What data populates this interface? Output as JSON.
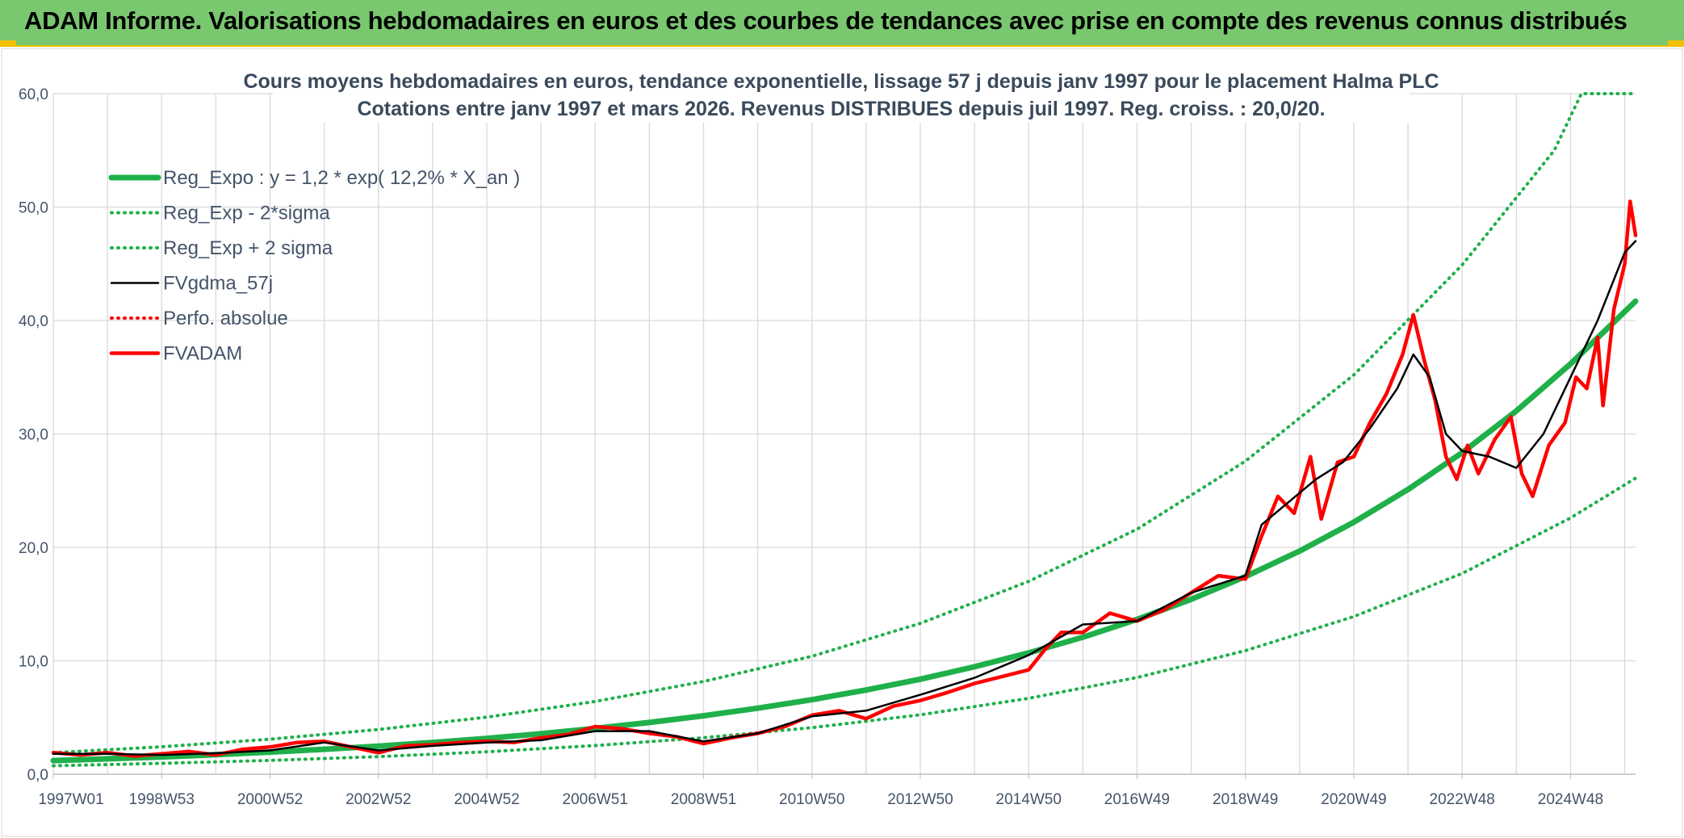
{
  "banner": {
    "title": "ADAM Informe. Valorisations hebdomadaires en euros et des courbes de tendances avec prise en compte des revenus connus distribués"
  },
  "colors": {
    "banner_bg": "#79c76f",
    "banner_accent": "#f0c000",
    "regression": "#1fb04a",
    "smoothed": "#000000",
    "price": "#ff0000",
    "grid": "#d9d9d9",
    "text": "#44546a"
  },
  "chart_data": {
    "type": "line",
    "title": "Cours moyens hebdomadaires en euros, tendance exponentielle, lissage 57 j depuis janv 1997 pour le placement Halma PLC",
    "subtitle": "Cotations entre janv 1997 et mars 2026. Revenus DISTRIBUES depuis juil 1997. Reg. croiss. : 20,0/20.",
    "xlabel": "",
    "ylabel": "",
    "ylim": [
      0,
      60
    ],
    "xlim": [
      1997.0,
      2026.2
    ],
    "grid": true,
    "legend_position": "top-left",
    "y_ticks": [
      "0,0",
      "10,0",
      "20,0",
      "30,0",
      "40,0",
      "50,0",
      "60,0"
    ],
    "x_ticks": [
      {
        "label": "1997W01",
        "x": 1997.0
      },
      {
        "label": "1998W53",
        "x": 1999.0
      },
      {
        "label": "2000W52",
        "x": 2001.0
      },
      {
        "label": "2002W52",
        "x": 2003.0
      },
      {
        "label": "2004W52",
        "x": 2005.0
      },
      {
        "label": "2006W51",
        "x": 2007.0
      },
      {
        "label": "2008W51",
        "x": 2009.0
      },
      {
        "label": "2010W50",
        "x": 2011.0
      },
      {
        "label": "2012W50",
        "x": 2013.0
      },
      {
        "label": "2014W50",
        "x": 2015.0
      },
      {
        "label": "2016W49",
        "x": 2017.0
      },
      {
        "label": "2018W49",
        "x": 2019.0
      },
      {
        "label": "2020W49",
        "x": 2021.0
      },
      {
        "label": "2022W48",
        "x": 2023.0
      },
      {
        "label": "2024W48",
        "x": 2025.0
      }
    ],
    "series": [
      {
        "name": "Reg_Expo : y = 1,2 * exp( 12,2% *  X_an )",
        "style": "solid-thick",
        "color": "#1fb04a",
        "points": [
          [
            1997.0,
            1.2
          ],
          [
            1998.0,
            1.36
          ],
          [
            1999.0,
            1.52
          ],
          [
            2000.0,
            1.72
          ],
          [
            2001.0,
            1.95
          ],
          [
            2002.0,
            2.2
          ],
          [
            2003.0,
            2.48
          ],
          [
            2004.0,
            2.8
          ],
          [
            2005.0,
            3.16
          ],
          [
            2006.0,
            3.57
          ],
          [
            2007.0,
            4.04
          ],
          [
            2008.0,
            4.56
          ],
          [
            2009.0,
            5.15
          ],
          [
            2010.0,
            5.82
          ],
          [
            2011.0,
            6.57
          ],
          [
            2012.0,
            7.42
          ],
          [
            2013.0,
            8.38
          ],
          [
            2014.0,
            9.47
          ],
          [
            2015.0,
            10.7
          ],
          [
            2016.0,
            12.08
          ],
          [
            2017.0,
            13.65
          ],
          [
            2018.0,
            15.42
          ],
          [
            2019.0,
            17.42
          ],
          [
            2020.0,
            19.67
          ],
          [
            2021.0,
            22.22
          ],
          [
            2022.0,
            25.1
          ],
          [
            2023.0,
            28.35
          ],
          [
            2024.0,
            32.03
          ],
          [
            2025.0,
            36.18
          ],
          [
            2026.2,
            41.7
          ]
        ]
      },
      {
        "name": "Reg_Exp - 2*sigma",
        "style": "dotted",
        "color": "#1fb04a",
        "points": [
          [
            1997.0,
            0.75
          ],
          [
            1999.0,
            0.96
          ],
          [
            2001.0,
            1.22
          ],
          [
            2003.0,
            1.55
          ],
          [
            2005.0,
            1.98
          ],
          [
            2007.0,
            2.53
          ],
          [
            2009.0,
            3.22
          ],
          [
            2011.0,
            4.11
          ],
          [
            2013.0,
            5.24
          ],
          [
            2015.0,
            6.69
          ],
          [
            2017.0,
            8.53
          ],
          [
            2019.0,
            10.9
          ],
          [
            2021.0,
            13.9
          ],
          [
            2023.0,
            17.7
          ],
          [
            2025.0,
            22.6
          ],
          [
            2026.2,
            26.1
          ]
        ]
      },
      {
        "name": "Reg_Exp + 2 sigma",
        "style": "dotted",
        "color": "#1fb04a",
        "points": [
          [
            1997.0,
            1.9
          ],
          [
            1999.0,
            2.42
          ],
          [
            2001.0,
            3.09
          ],
          [
            2003.0,
            3.94
          ],
          [
            2005.0,
            5.03
          ],
          [
            2007.0,
            6.41
          ],
          [
            2009.0,
            8.18
          ],
          [
            2011.0,
            10.4
          ],
          [
            2013.0,
            13.3
          ],
          [
            2015.0,
            17.0
          ],
          [
            2017.0,
            21.6
          ],
          [
            2019.0,
            27.6
          ],
          [
            2021.0,
            35.2
          ],
          [
            2023.0,
            44.9
          ],
          [
            2024.7,
            55.0
          ],
          [
            2025.2,
            60.0
          ],
          [
            2026.2,
            60.0
          ]
        ]
      },
      {
        "name": "FVgdma_57j",
        "style": "solid",
        "color": "#000000",
        "points": [
          [
            1997.0,
            1.8
          ],
          [
            1998.0,
            1.8
          ],
          [
            1999.0,
            1.7
          ],
          [
            2000.0,
            1.85
          ],
          [
            2001.0,
            2.1
          ],
          [
            2002.0,
            2.8
          ],
          [
            2003.0,
            2.1
          ],
          [
            2004.0,
            2.5
          ],
          [
            2005.0,
            2.8
          ],
          [
            2006.0,
            3.0
          ],
          [
            2007.0,
            3.8
          ],
          [
            2008.0,
            3.8
          ],
          [
            2009.0,
            2.9
          ],
          [
            2010.0,
            3.6
          ],
          [
            2011.0,
            5.1
          ],
          [
            2012.0,
            5.6
          ],
          [
            2013.0,
            7.0
          ],
          [
            2014.0,
            8.5
          ],
          [
            2015.0,
            10.5
          ],
          [
            2016.0,
            13.2
          ],
          [
            2017.0,
            13.5
          ],
          [
            2018.0,
            16.0
          ],
          [
            2019.0,
            17.5
          ],
          [
            2019.3,
            22.0
          ],
          [
            2019.8,
            24.0
          ],
          [
            2020.3,
            26.0
          ],
          [
            2020.8,
            27.5
          ],
          [
            2021.3,
            30.5
          ],
          [
            2021.8,
            34.0
          ],
          [
            2022.1,
            37.0
          ],
          [
            2022.4,
            35.0
          ],
          [
            2022.7,
            30.0
          ],
          [
            2023.0,
            28.5
          ],
          [
            2023.5,
            28.0
          ],
          [
            2024.0,
            27.0
          ],
          [
            2024.5,
            30.0
          ],
          [
            2025.0,
            35.0
          ],
          [
            2025.5,
            40.0
          ],
          [
            2026.0,
            46.0
          ],
          [
            2026.2,
            47.0
          ]
        ]
      },
      {
        "name": "Perfo. absolue",
        "style": "dotted",
        "color": "#ff0000",
        "points": []
      },
      {
        "name": "FVADAM",
        "style": "solid-thick",
        "color": "#ff0000",
        "points": [
          [
            1997.0,
            1.9
          ],
          [
            1997.5,
            1.7
          ],
          [
            1998.0,
            1.9
          ],
          [
            1998.5,
            1.6
          ],
          [
            1999.0,
            1.8
          ],
          [
            1999.5,
            2.0
          ],
          [
            2000.0,
            1.7
          ],
          [
            2000.5,
            2.2
          ],
          [
            2001.0,
            2.4
          ],
          [
            2001.5,
            2.8
          ],
          [
            2002.0,
            2.9
          ],
          [
            2002.5,
            2.4
          ],
          [
            2003.0,
            1.9
          ],
          [
            2003.5,
            2.5
          ],
          [
            2004.0,
            2.6
          ],
          [
            2004.5,
            2.8
          ],
          [
            2005.0,
            2.9
          ],
          [
            2005.5,
            2.8
          ],
          [
            2006.0,
            3.2
          ],
          [
            2006.5,
            3.5
          ],
          [
            2007.0,
            4.2
          ],
          [
            2007.5,
            4.0
          ],
          [
            2008.0,
            3.6
          ],
          [
            2008.5,
            3.3
          ],
          [
            2009.0,
            2.7
          ],
          [
            2009.5,
            3.2
          ],
          [
            2010.0,
            3.6
          ],
          [
            2010.5,
            4.2
          ],
          [
            2011.0,
            5.2
          ],
          [
            2011.5,
            5.6
          ],
          [
            2012.0,
            4.9
          ],
          [
            2012.5,
            6.0
          ],
          [
            2013.0,
            6.5
          ],
          [
            2013.5,
            7.2
          ],
          [
            2014.0,
            8.0
          ],
          [
            2014.5,
            8.6
          ],
          [
            2015.0,
            9.2
          ],
          [
            2015.3,
            11.0
          ],
          [
            2015.6,
            12.5
          ],
          [
            2016.0,
            12.5
          ],
          [
            2016.5,
            14.2
          ],
          [
            2017.0,
            13.5
          ],
          [
            2017.5,
            14.5
          ],
          [
            2018.0,
            16.0
          ],
          [
            2018.5,
            17.5
          ],
          [
            2019.0,
            17.2
          ],
          [
            2019.3,
            21.0
          ],
          [
            2019.6,
            24.5
          ],
          [
            2019.9,
            23.0
          ],
          [
            2020.2,
            28.0
          ],
          [
            2020.4,
            22.5
          ],
          [
            2020.7,
            27.5
          ],
          [
            2021.0,
            28.0
          ],
          [
            2021.3,
            31.0
          ],
          [
            2021.6,
            33.5
          ],
          [
            2021.9,
            37.0
          ],
          [
            2022.1,
            40.5
          ],
          [
            2022.3,
            36.5
          ],
          [
            2022.5,
            33.0
          ],
          [
            2022.7,
            28.0
          ],
          [
            2022.9,
            26.0
          ],
          [
            2023.1,
            29.0
          ],
          [
            2023.3,
            26.5
          ],
          [
            2023.6,
            29.5
          ],
          [
            2023.9,
            31.5
          ],
          [
            2024.1,
            26.5
          ],
          [
            2024.3,
            24.5
          ],
          [
            2024.6,
            29.0
          ],
          [
            2024.9,
            31.0
          ],
          [
            2025.1,
            35.0
          ],
          [
            2025.3,
            34.0
          ],
          [
            2025.5,
            38.5
          ],
          [
            2025.6,
            32.5
          ],
          [
            2025.8,
            41.0
          ],
          [
            2026.0,
            45.0
          ],
          [
            2026.1,
            50.5
          ],
          [
            2026.2,
            47.5
          ]
        ]
      }
    ]
  }
}
